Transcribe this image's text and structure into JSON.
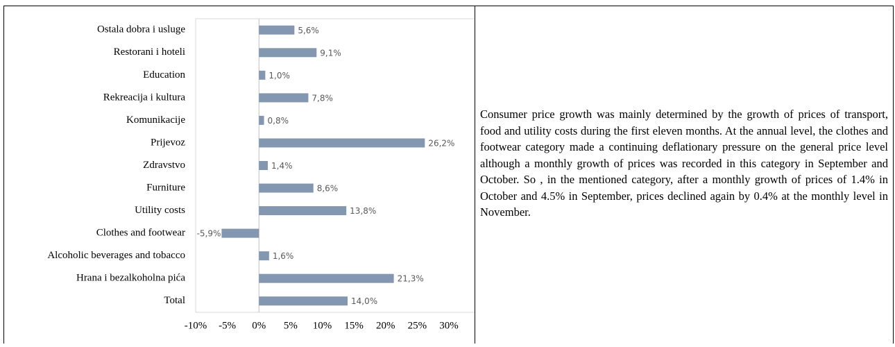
{
  "chart_data": {
    "type": "bar",
    "orientation": "horizontal",
    "categories": [
      "Ostala dobra i usluge",
      "Restorani i hoteli",
      "Education",
      "Rekreacija i kultura",
      "Komunikacije",
      "Prijevoz",
      "Zdravstvo",
      "Furniture",
      "Utility costs",
      "Clothes and footwear",
      "Alcoholic beverages and tobacco",
      "Hrana i bezalkoholna pića",
      "Total"
    ],
    "values": [
      5.6,
      9.1,
      1.0,
      7.8,
      0.8,
      26.2,
      1.4,
      8.6,
      13.8,
      -5.9,
      1.6,
      21.3,
      14.0
    ],
    "value_labels": [
      "5,6%",
      "9,1%",
      "1,0%",
      "7,8%",
      "0,8%",
      "26,2%",
      "1,4%",
      "8,6%",
      "13,8%",
      "-5,9%",
      "1,6%",
      "21,3%",
      "14,0%"
    ],
    "color": "#8497b0",
    "xlim": [
      -10,
      30
    ],
    "xticks": [
      {
        "value": -10,
        "label": "-10%"
      },
      {
        "value": -5,
        "label": "-5%"
      },
      {
        "value": 0,
        "label": "0%"
      },
      {
        "value": 5,
        "label": "5%"
      },
      {
        "value": 10,
        "label": "10%"
      },
      {
        "value": 15,
        "label": "15%"
      },
      {
        "value": 20,
        "label": "20%"
      },
      {
        "value": 25,
        "label": "25%"
      },
      {
        "value": 30,
        "label": "30%"
      }
    ],
    "grid": false
  },
  "text": "Consumer price growth was mainly determined by the growth of prices of transport, food and utility costs during the first eleven months. At the annual level, the clothes and footwear category made a continuing deflationary pressure on the general price level  although a monthly growth of prices was recorded in this category in September and October. So , in the mentioned category, after a monthly growth of prices of 1.4% in October and 4.5% in September,  prices declined again by 0.4% at the monthly level in November."
}
